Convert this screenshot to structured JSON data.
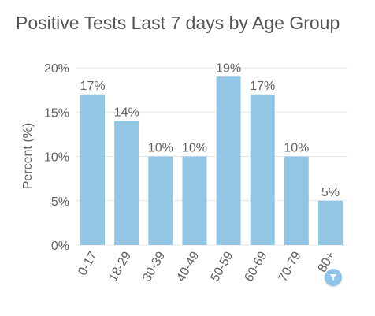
{
  "colors": {
    "bar": "#93c5e5",
    "grid": "#e6e6e6",
    "axis_text": "#606060",
    "title_text": "#555555",
    "filter_button": "#8ec3ea"
  },
  "icons": {
    "filter": "filter-icon"
  },
  "chart_data": {
    "type": "bar",
    "title": "Positive Tests Last 7 days by Age Group",
    "xlabel": "",
    "ylabel": "Percent (%)",
    "ylim": [
      0,
      20
    ],
    "yticks": [
      "0%",
      "5%",
      "10%",
      "15%",
      "20%"
    ],
    "categories": [
      "0-17",
      "18-29",
      "30-39",
      "40-49",
      "50-59",
      "60-69",
      "70-79",
      "80+"
    ],
    "values": [
      17,
      14,
      10,
      10,
      19,
      17,
      10,
      5
    ],
    "value_labels": [
      "17%",
      "14%",
      "10%",
      "10%",
      "19%",
      "17%",
      "10%",
      "5%"
    ],
    "grid": true,
    "legend": "none"
  }
}
